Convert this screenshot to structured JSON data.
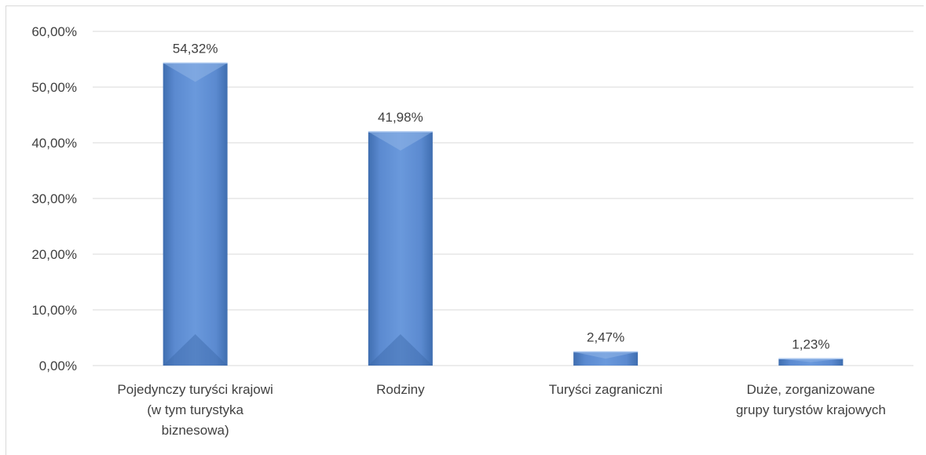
{
  "chart_data": {
    "type": "bar",
    "categories": [
      [
        "Pojedynczy turyści krajowi",
        "(w tym turystyka",
        "biznesowa)"
      ],
      [
        "Rodziny"
      ],
      [
        "Turyści zagraniczni"
      ],
      [
        "Duże, zorganizowane",
        "grupy turystów krajowych"
      ]
    ],
    "values": [
      54.32,
      41.98,
      2.47,
      1.23
    ],
    "data_labels": [
      "54,32%",
      "41,98%",
      "2,47%",
      "1,23%"
    ],
    "y_ticks": [
      0,
      10,
      20,
      30,
      40,
      50,
      60
    ],
    "y_tick_labels": [
      "0,00%",
      "10,00%",
      "20,00%",
      "30,00%",
      "40,00%",
      "50,00%",
      "60,00%"
    ],
    "ylim": [
      0,
      60
    ],
    "grid": true,
    "legend": "none",
    "colors": {
      "bar": "#5b8bd0",
      "bar_light": "#8db3e8",
      "bar_dark": "#3c6aa9",
      "grid": "#d9d9d9",
      "text": "#404040"
    }
  }
}
